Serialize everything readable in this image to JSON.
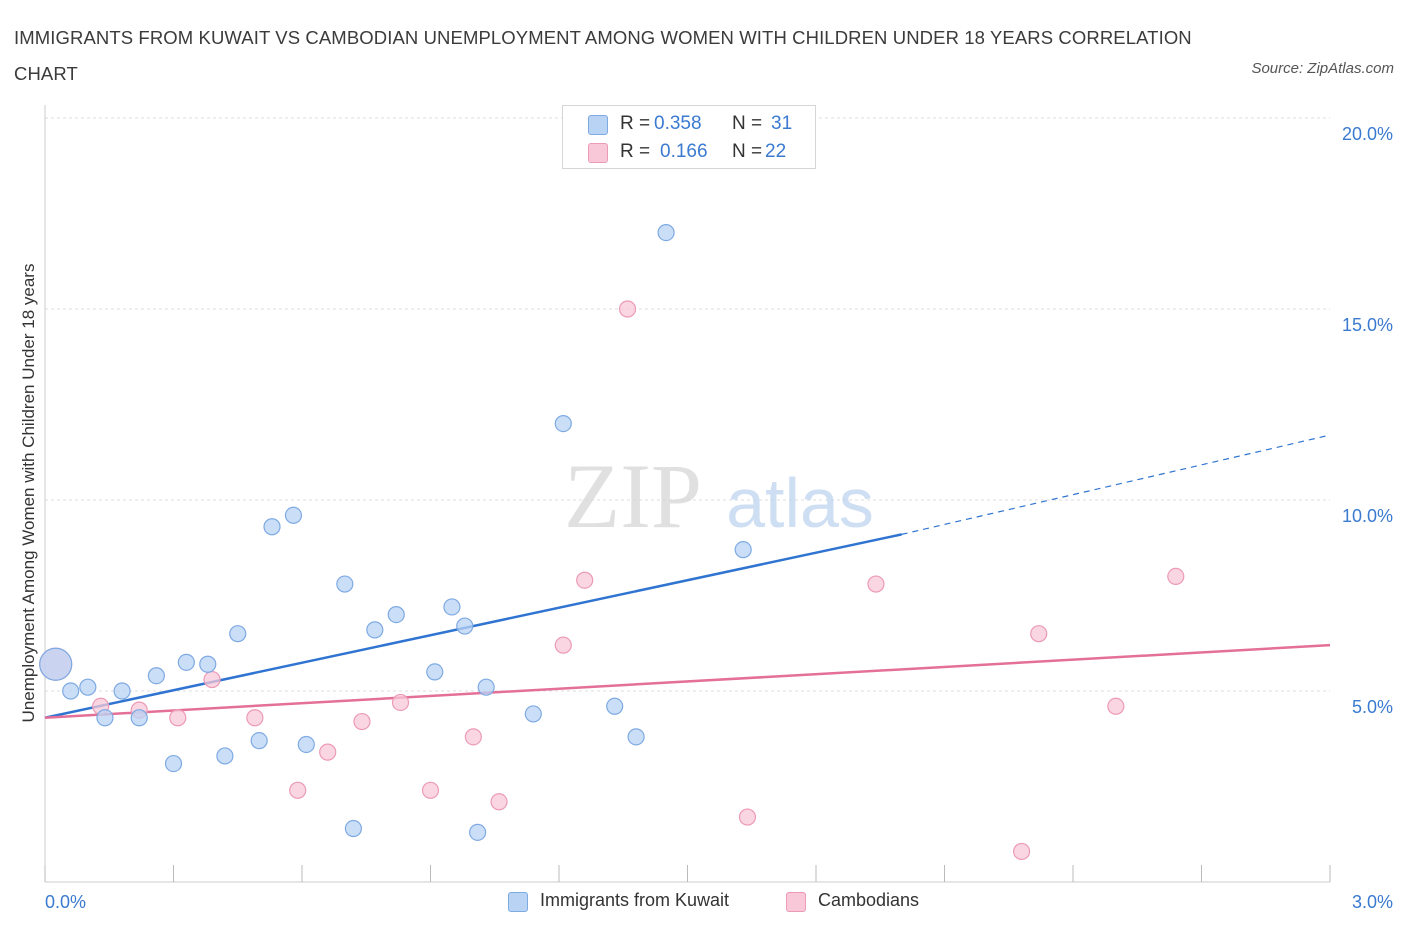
{
  "title": "IMMIGRANTS FROM KUWAIT VS CAMBODIAN UNEMPLOYMENT AMONG WOMEN WITH CHILDREN UNDER 18 YEARS CORRELATION CHART",
  "source": "Source: ZipAtlas.com",
  "watermark": {
    "zip": "ZIP",
    "atlas": "atlas"
  },
  "colors": {
    "blue_fill": "#b9d3f5",
    "blue_stroke": "#7eaae2",
    "blue_line": "#2f74d0",
    "pink_fill": "#f8c8d8",
    "pink_stroke": "#ec9ab6",
    "pink_line": "#e46f98",
    "tick_text": "#3a7ad0",
    "grid": "#dddddd"
  },
  "stats": [
    {
      "r_label": "R =",
      "r_value": "0.358",
      "n_label": "N =",
      "n_value": "31"
    },
    {
      "r_label": "R =",
      "r_value": "0.166",
      "n_label": "N =",
      "n_value": "22"
    }
  ],
  "legend": [
    "Immigrants from Kuwait",
    "Cambodians"
  ],
  "chart_data": {
    "type": "scatter",
    "title": "IMMIGRANTS FROM KUWAIT VS CAMBODIAN UNEMPLOYMENT AMONG WOMEN WITH CHILDREN UNDER 18 YEARS CORRELATION CHART",
    "xlabel": "",
    "ylabel": "Unemployment Among Women with Children Under 18 years",
    "xlim": [
      0,
      3.0
    ],
    "ylim": [
      0,
      20.0
    ],
    "x_tick_labels": [
      "0.0%",
      "3.0%"
    ],
    "y_ticks": [
      5.0,
      10.0,
      15.0,
      20.0
    ],
    "y_tick_labels": [
      "5.0%",
      "10.0%",
      "15.0%",
      "20.0%"
    ],
    "grid": "horizontal dashed",
    "legend_position": "bottom-center",
    "series": [
      {
        "name": "Immigrants from Kuwait",
        "points": [
          [
            0.025,
            5.7
          ],
          [
            0.06,
            5.0
          ],
          [
            0.1,
            5.1
          ],
          [
            0.14,
            4.3
          ],
          [
            0.18,
            5.0
          ],
          [
            0.22,
            4.3
          ],
          [
            0.26,
            5.4
          ],
          [
            0.3,
            3.1
          ],
          [
            0.33,
            5.75
          ],
          [
            0.38,
            5.7
          ],
          [
            0.42,
            3.3
          ],
          [
            0.45,
            6.5
          ],
          [
            0.5,
            3.7
          ],
          [
            0.53,
            9.3
          ],
          [
            0.58,
            9.6
          ],
          [
            0.61,
            3.6
          ],
          [
            0.7,
            7.8
          ],
          [
            0.72,
            1.4
          ],
          [
            0.77,
            6.6
          ],
          [
            0.82,
            7.0
          ],
          [
            0.91,
            5.5
          ],
          [
            0.95,
            7.2
          ],
          [
            0.98,
            6.7
          ],
          [
            1.01,
            1.3
          ],
          [
            1.03,
            5.1
          ],
          [
            1.14,
            4.4
          ],
          [
            1.21,
            12.0
          ],
          [
            1.33,
            4.6
          ],
          [
            1.38,
            3.8
          ],
          [
            1.45,
            17.0
          ],
          [
            1.63,
            8.7
          ]
        ],
        "trend": {
          "x": [
            0.0,
            2.0
          ],
          "y": [
            4.3,
            9.1
          ],
          "dashed_extension": {
            "x": [
              2.0,
              3.0
            ],
            "y": [
              9.1,
              11.7
            ]
          }
        }
      },
      {
        "name": "Cambodians",
        "points": [
          [
            0.025,
            5.7
          ],
          [
            0.13,
            4.6
          ],
          [
            0.22,
            4.5
          ],
          [
            0.31,
            4.3
          ],
          [
            0.39,
            5.3
          ],
          [
            0.49,
            4.3
          ],
          [
            0.59,
            2.4
          ],
          [
            0.66,
            3.4
          ],
          [
            0.74,
            4.2
          ],
          [
            0.83,
            4.7
          ],
          [
            0.9,
            2.4
          ],
          [
            1.0,
            3.8
          ],
          [
            1.06,
            2.1
          ],
          [
            1.21,
            6.2
          ],
          [
            1.26,
            7.9
          ],
          [
            1.36,
            15.0
          ],
          [
            1.64,
            1.7
          ],
          [
            1.94,
            7.8
          ],
          [
            2.28,
            0.8
          ],
          [
            2.32,
            6.5
          ],
          [
            2.5,
            4.6
          ],
          [
            2.64,
            8.0
          ]
        ],
        "trend": {
          "x": [
            0.0,
            3.0
          ],
          "y": [
            4.3,
            6.2
          ]
        }
      }
    ]
  }
}
